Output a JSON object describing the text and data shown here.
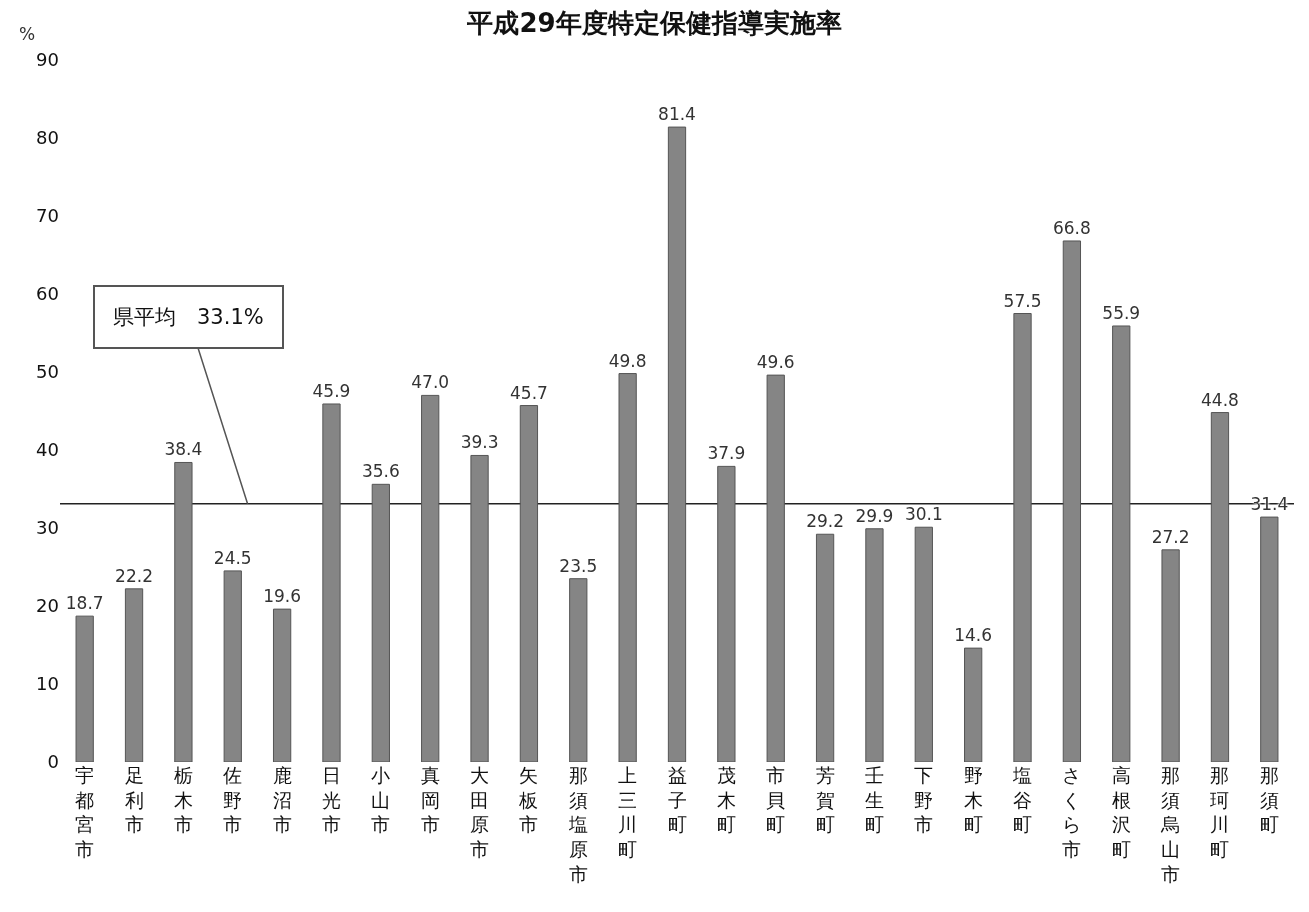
{
  "chart_data": {
    "type": "bar",
    "title": "平成29年度特定保健指導実施率",
    "ylabel": "%",
    "categories": [
      "宇都宮市",
      "足利市",
      "栃木市",
      "佐野市",
      "鹿沼市",
      "日光市",
      "小山市",
      "真岡市",
      "大田原市",
      "矢板市",
      "那須塩原市",
      "上三川町",
      "益子町",
      "茂木町",
      "市貝町",
      "芳賀町",
      "壬生町",
      "下野市",
      "野木町",
      "塩谷町",
      "さくら市",
      "高根沢町",
      "那須烏山市",
      "那珂川町",
      "那須町"
    ],
    "values": [
      18.7,
      22.2,
      38.4,
      24.5,
      19.6,
      45.9,
      35.6,
      47.0,
      39.3,
      45.7,
      23.5,
      49.8,
      81.4,
      37.9,
      49.6,
      29.2,
      29.9,
      30.1,
      14.6,
      57.5,
      66.8,
      55.9,
      27.2,
      44.8,
      31.4
    ],
    "value_labels": [
      "18.7",
      "22.2",
      "38.4",
      "24.5",
      "19.6",
      "45.9",
      "35.6",
      "47.0",
      "39.3",
      "45.7",
      "23.5",
      "49.8",
      "81.4",
      "37.9",
      "49.6",
      "29.2",
      "29.9",
      "30.1",
      "14.6",
      "57.5",
      "66.8",
      "55.9",
      "27.2",
      "44.8",
      "31.4"
    ],
    "color": "#858585",
    "ylim": [
      0,
      90
    ],
    "yticks": [
      0,
      10,
      20,
      30,
      40,
      50,
      60,
      70,
      80,
      90
    ],
    "grid": false,
    "legend": false,
    "ref_lines": [
      {
        "axis": "y",
        "value": 33.1,
        "label": "県平均　33.1%",
        "color": "#222222"
      }
    ]
  }
}
